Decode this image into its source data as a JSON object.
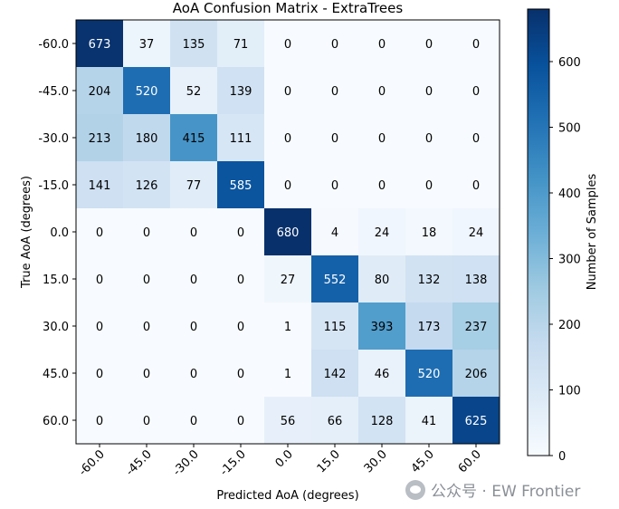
{
  "chart_data": {
    "type": "heatmap",
    "title": "AoA Confusion Matrix - ExtraTrees",
    "xlabel": "Predicted AoA (degrees)",
    "ylabel": "True AoA (degrees)",
    "x_categories": [
      "-60.0",
      "-45.0",
      "-30.0",
      "-15.0",
      "0.0",
      "15.0",
      "30.0",
      "45.0",
      "60.0"
    ],
    "y_categories": [
      "-60.0",
      "-45.0",
      "-30.0",
      "-15.0",
      "0.0",
      "15.0",
      "30.0",
      "45.0",
      "60.0"
    ],
    "values": [
      [
        673,
        37,
        135,
        71,
        0,
        0,
        0,
        0,
        0
      ],
      [
        204,
        520,
        52,
        139,
        0,
        0,
        0,
        0,
        0
      ],
      [
        213,
        180,
        415,
        111,
        0,
        0,
        0,
        0,
        0
      ],
      [
        141,
        126,
        77,
        585,
        0,
        0,
        0,
        0,
        0
      ],
      [
        0,
        0,
        0,
        0,
        680,
        4,
        24,
        18,
        24
      ],
      [
        0,
        0,
        0,
        0,
        27,
        552,
        80,
        132,
        138
      ],
      [
        0,
        0,
        0,
        0,
        1,
        115,
        393,
        173,
        237
      ],
      [
        0,
        0,
        0,
        0,
        1,
        142,
        46,
        520,
        206
      ],
      [
        0,
        0,
        0,
        0,
        56,
        66,
        128,
        41,
        625
      ]
    ],
    "colorbar": {
      "label": "Number of Samples",
      "colormap": "Blues",
      "range": [
        0,
        680
      ],
      "ticks": [
        0,
        100,
        200,
        300,
        400,
        500,
        600
      ]
    }
  },
  "watermark": {
    "text": "公众号 · EW Frontier",
    "icon": "wechat-icon"
  }
}
